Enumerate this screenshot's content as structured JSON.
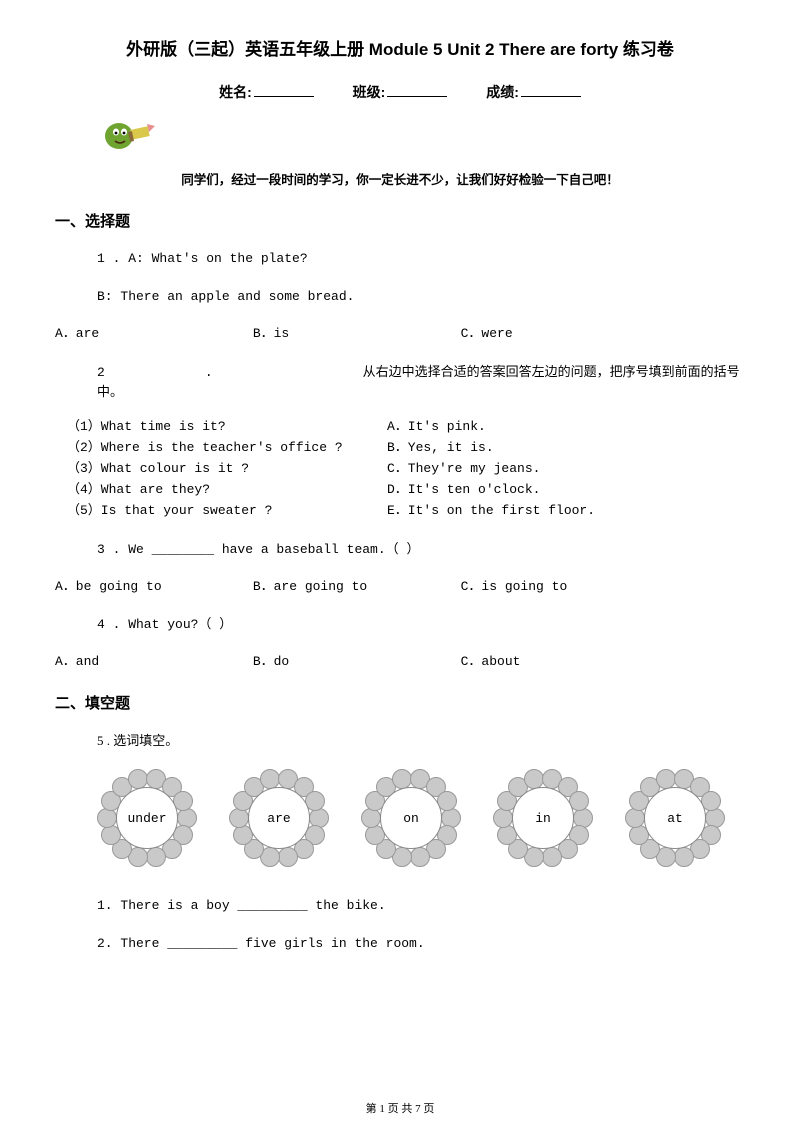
{
  "title": "外研版（三起）英语五年级上册 Module 5 Unit 2 There are forty 练习卷",
  "info": {
    "name_label": "姓名:",
    "class_label": "班级:",
    "score_label": "成绩:"
  },
  "encourage": "同学们，经过一段时间的学习，你一定长进不少，让我们好好检验一下自己吧！",
  "section1": "一、选择题",
  "q1": {
    "num": "1 . A: What's on the plate?",
    "line2": "B: There        an apple and some bread.",
    "optA": "A．are",
    "optB": "B．is",
    "optC": "C．were"
  },
  "q2": {
    "num": "2",
    "dot": ".",
    "instruction": "从右边中选择合适的答案回答左边的问题，把序号填到前面的括号中。",
    "rows": [
      {
        "l": "（1）What time is it?",
        "r": "A．It's pink."
      },
      {
        "l": "（2）Where is the teacher's office ?",
        "r": "B．Yes, it is."
      },
      {
        "l": "（3）What colour is it ?",
        "r": "C．They're my jeans."
      },
      {
        "l": "（4）What are they?",
        "r": "D．It's ten o'clock."
      },
      {
        "l": "（5）Is that your sweater ?",
        "r": "E．It's on the first floor."
      }
    ]
  },
  "q3": {
    "text": "3 . We ________ have a baseball team.（   ）",
    "optA": "A．be going to",
    "optB": "B．are going to",
    "optC": "C．is going to"
  },
  "q4": {
    "text": "4 . What      you?（   ）",
    "optA": "A．and",
    "optB": "B．do",
    "optC": "C．about"
  },
  "section2": "二、填空题",
  "q5": {
    "text": "5 . 选词填空。",
    "words": [
      "under",
      "are",
      "on",
      "in",
      "at"
    ],
    "s1": "1. There is a boy _________ the bike.",
    "s2": "2. There _________ five girls in the room."
  },
  "footer": "第 1 页 共 7 页",
  "colors": {
    "text": "#000000",
    "bg": "#ffffff",
    "petal_fill": "#c9c9c9",
    "petal_border": "#999999",
    "circle_border": "#888888",
    "pencil_green": "#6fa430",
    "pencil_yellow": "#d9c84a",
    "pencil_pink": "#e89090"
  }
}
